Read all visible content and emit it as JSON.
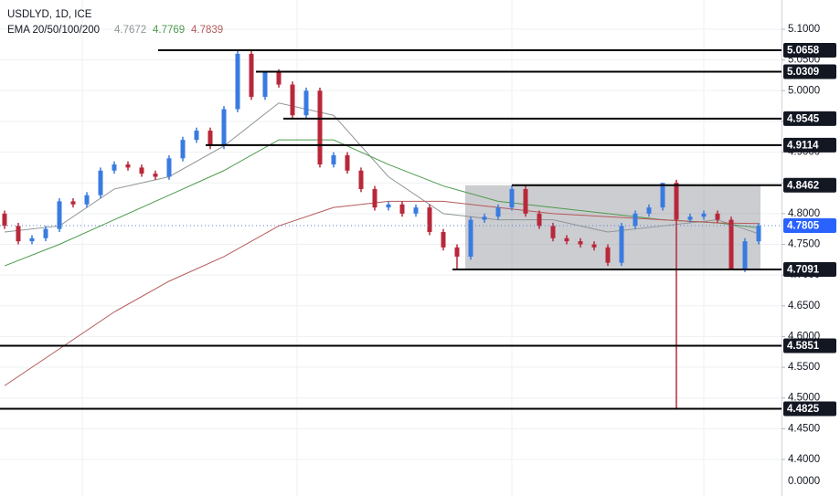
{
  "chart_data": {
    "type": "candlestick",
    "symbol": "USDLYD, 1D, ICE",
    "indicator": "EMA 20/50/100/200",
    "up_color": "#3a7be0",
    "down_color": "#b8283a",
    "open": [
      4.8,
      4.78,
      4.755,
      4.76,
      4.775,
      4.82,
      4.815,
      4.83,
      4.87,
      4.88,
      4.875,
      4.865,
      4.86,
      4.89,
      4.92,
      4.935,
      4.91,
      4.97,
      5.06,
      4.99,
      5.03,
      5.01,
      4.96,
      5.0,
      4.88,
      4.895,
      4.87,
      4.84,
      4.81,
      4.815,
      4.8,
      4.81,
      4.77,
      4.745,
      4.73,
      4.79,
      4.795,
      4.81,
      4.84,
      4.8,
      4.78,
      4.76,
      4.755,
      4.75,
      4.745,
      4.72,
      4.78,
      4.8,
      4.81,
      4.85,
      4.79,
      4.795,
      4.8,
      4.79,
      4.71,
      4.755
    ],
    "high": [
      4.805,
      4.785,
      4.765,
      4.78,
      4.825,
      4.825,
      4.835,
      4.875,
      4.885,
      4.885,
      4.88,
      4.87,
      4.895,
      4.925,
      4.94,
      4.94,
      4.975,
      5.0658,
      5.065,
      5.0309,
      5.035,
      5.015,
      5.005,
      5.005,
      4.9,
      4.9,
      4.875,
      4.845,
      4.82,
      4.82,
      4.815,
      4.815,
      4.775,
      4.75,
      4.795,
      4.8,
      4.815,
      4.8462,
      4.8462,
      4.805,
      4.785,
      4.765,
      4.76,
      4.755,
      4.75,
      4.785,
      4.805,
      4.815,
      4.8462,
      4.855,
      4.8,
      4.805,
      4.805,
      4.795,
      4.76,
      4.785
    ],
    "low": [
      4.775,
      4.75,
      4.75,
      4.755,
      4.77,
      4.81,
      4.81,
      4.825,
      4.865,
      4.87,
      4.86,
      4.855,
      4.855,
      4.885,
      4.915,
      4.905,
      4.905,
      4.965,
      4.985,
      4.985,
      5.005,
      4.9545,
      4.955,
      4.875,
      4.875,
      4.865,
      4.835,
      4.805,
      4.805,
      4.795,
      4.795,
      4.765,
      4.74,
      4.7091,
      4.725,
      4.785,
      4.79,
      4.805,
      4.795,
      4.775,
      4.755,
      4.75,
      4.745,
      4.74,
      4.715,
      4.715,
      4.775,
      4.795,
      4.805,
      4.4825,
      4.785,
      4.79,
      4.785,
      4.7091,
      4.705,
      4.75
    ],
    "close": [
      4.78,
      4.755,
      4.76,
      4.775,
      4.82,
      4.815,
      4.83,
      4.87,
      4.88,
      4.875,
      4.865,
      4.86,
      4.89,
      4.92,
      4.935,
      4.91,
      4.97,
      5.06,
      4.99,
      5.03,
      5.01,
      4.96,
      5.0,
      4.88,
      4.895,
      4.87,
      4.84,
      4.81,
      4.815,
      4.8,
      4.81,
      4.77,
      4.745,
      4.73,
      4.79,
      4.795,
      4.81,
      4.84,
      4.8,
      4.78,
      4.76,
      4.755,
      4.75,
      4.745,
      4.72,
      4.78,
      4.8,
      4.81,
      4.85,
      4.79,
      4.795,
      4.8,
      4.79,
      4.71,
      4.755,
      4.78
    ],
    "ema_x": [
      0,
      4,
      8,
      12,
      16,
      20,
      24,
      28,
      32,
      36,
      40,
      44,
      48,
      52,
      55
    ],
    "series": [
      {
        "name": "4.7672",
        "color": "#8f9596",
        "values": [
          4.77,
          4.78,
          4.84,
          4.86,
          4.91,
          4.98,
          4.96,
          4.86,
          4.8,
          4.79,
          4.79,
          4.77,
          4.78,
          4.79,
          4.7672
        ]
      },
      {
        "name": "4.7769",
        "color": "#4c9a4c",
        "values": [
          4.715,
          4.75,
          4.79,
          4.83,
          4.87,
          4.92,
          4.92,
          4.88,
          4.845,
          4.82,
          4.81,
          4.8,
          4.79,
          4.785,
          4.7769
        ]
      },
      {
        "name": "4.7839",
        "color": "#b45a5a",
        "values": [
          4.52,
          4.58,
          4.64,
          4.69,
          4.73,
          4.78,
          4.81,
          4.82,
          4.82,
          4.81,
          4.8,
          4.795,
          4.79,
          4.785,
          4.7839
        ]
      }
    ],
    "levels": [
      5.0658,
      5.0309,
      4.9545,
      4.9114,
      4.8462,
      4.7091,
      4.5851,
      4.4825
    ],
    "range_box": {
      "top": 4.8462,
      "bottom": 4.7091
    },
    "last_price": 4.7805,
    "ylim": [
      4.3405,
      5.1476
    ],
    "yticks": [
      {
        "value": 5.1,
        "label": "5.1000"
      },
      {
        "value": 5.05,
        "label": "5.0500"
      },
      {
        "value": 5.0,
        "label": "5.0000"
      },
      {
        "value": 4.95,
        "label": "4.9500"
      },
      {
        "value": 4.9,
        "label": "4.9000"
      },
      {
        "value": 4.85,
        "label": "4.8500"
      },
      {
        "value": 4.8,
        "label": "4.8000"
      },
      {
        "value": 4.75,
        "label": "4.7500"
      },
      {
        "value": 4.7,
        "label": "4.7000"
      },
      {
        "value": 4.65,
        "label": "4.6500"
      },
      {
        "value": 4.6,
        "label": "4.6000"
      },
      {
        "value": 4.55,
        "label": "4.5500"
      },
      {
        "value": 4.5,
        "label": "4.5000"
      },
      {
        "value": 4.45,
        "label": "4.4500"
      },
      {
        "value": 4.4,
        "label": "4.4000"
      }
    ],
    "axis_footer_label": "0.0000",
    "grid": true
  }
}
